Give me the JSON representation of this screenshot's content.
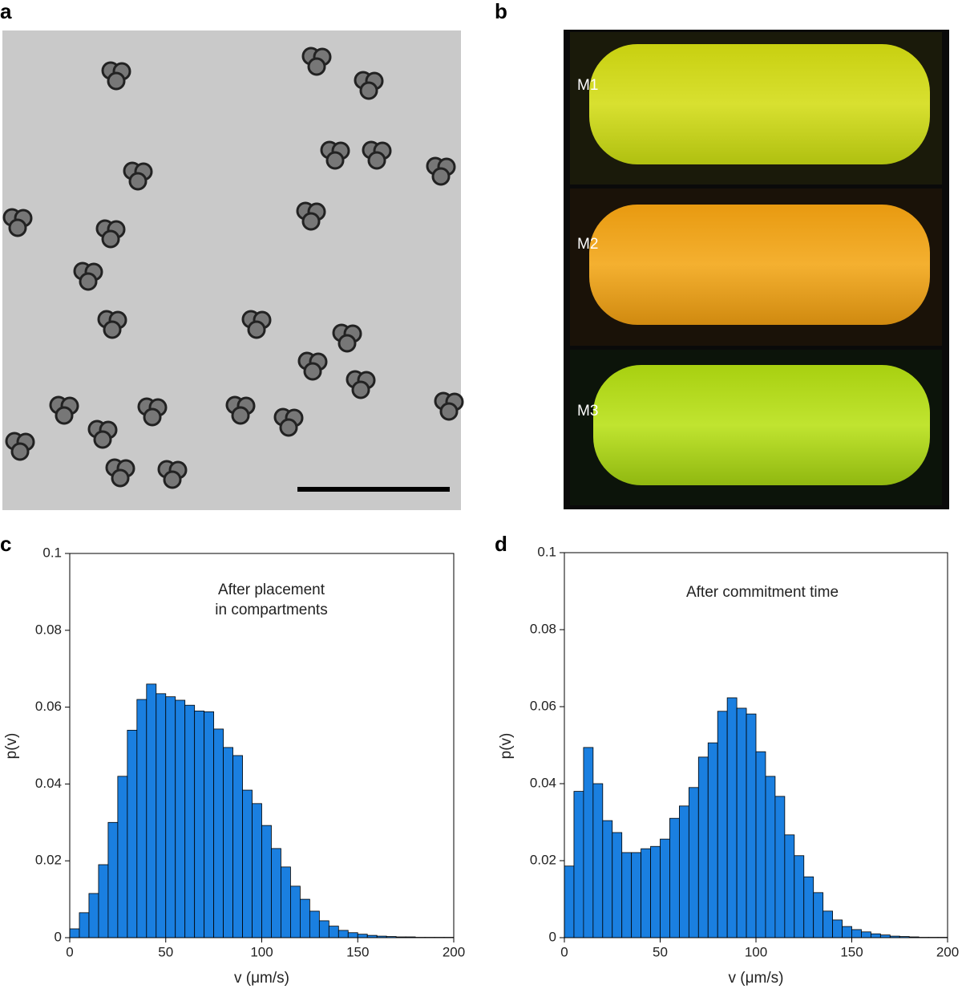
{
  "panel_labels": [
    "a",
    "b",
    "c",
    "d"
  ],
  "photo_labels": [
    "M1",
    "M2",
    "M3"
  ],
  "chart_data": [
    {
      "type": "histogram",
      "annotation": [
        "After placement",
        "in compartments"
      ],
      "xlabel": "v (μm/s)",
      "ylabel": "p(v)",
      "color": "#1a7fe0",
      "bins": [
        0,
        5,
        10,
        15,
        20,
        25,
        30,
        35,
        40,
        45,
        50,
        55,
        60,
        65,
        70,
        75,
        80,
        85,
        90,
        95,
        100,
        105,
        110,
        115,
        120,
        125,
        130,
        135,
        140,
        145,
        150,
        155,
        160,
        165,
        170,
        175,
        180,
        185,
        190,
        195,
        200
      ],
      "values": [
        0.0023,
        0.0065,
        0.0115,
        0.019,
        0.03,
        0.042,
        0.054,
        0.062,
        0.066,
        0.0635,
        0.0627,
        0.0618,
        0.0605,
        0.059,
        0.0588,
        0.0543,
        0.0495,
        0.0474,
        0.0384,
        0.0349,
        0.0292,
        0.0232,
        0.0184,
        0.0134,
        0.01,
        0.0069,
        0.0044,
        0.003,
        0.0019,
        0.0013,
        0.0009,
        0.0006,
        0.0004,
        0.0003,
        0.0002,
        0.0002,
        0.0001,
        0.0001,
        0.0001,
        0.0001
      ],
      "xlim": [
        0,
        200
      ],
      "xticks": [
        0,
        50,
        100,
        150,
        200
      ],
      "ylim": [
        0,
        0.1
      ],
      "yticks": [
        0,
        0.02,
        0.04,
        0.06,
        0.08,
        0.1
      ]
    },
    {
      "type": "histogram",
      "annotation": [
        "After commitment time"
      ],
      "xlabel": "v (μm/s)",
      "ylabel": "p(v)",
      "color": "#1a7fe0",
      "bins": [
        0,
        5,
        10,
        15,
        20,
        25,
        30,
        35,
        40,
        45,
        50,
        55,
        60,
        65,
        70,
        75,
        80,
        85,
        90,
        95,
        100,
        105,
        110,
        115,
        120,
        125,
        130,
        135,
        140,
        145,
        150,
        155,
        160,
        165,
        170,
        175,
        180,
        185,
        190,
        195,
        200
      ],
      "values": [
        0.0186,
        0.038,
        0.0494,
        0.04,
        0.0304,
        0.0273,
        0.0221,
        0.0221,
        0.0231,
        0.0237,
        0.0256,
        0.031,
        0.0342,
        0.039,
        0.0469,
        0.0506,
        0.0588,
        0.0623,
        0.0596,
        0.0581,
        0.0483,
        0.0419,
        0.0367,
        0.0267,
        0.0213,
        0.0158,
        0.0117,
        0.0069,
        0.0046,
        0.0029,
        0.0021,
        0.0015,
        0.001,
        0.0007,
        0.0004,
        0.0003,
        0.0002,
        0.0001,
        0.0001,
        0.0001
      ],
      "xlim": [
        0,
        200
      ],
      "xticks": [
        0,
        50,
        100,
        150,
        200
      ],
      "ylim": [
        0,
        0.1
      ],
      "yticks": [
        0,
        0.02,
        0.04,
        0.06,
        0.08,
        0.1
      ]
    }
  ]
}
